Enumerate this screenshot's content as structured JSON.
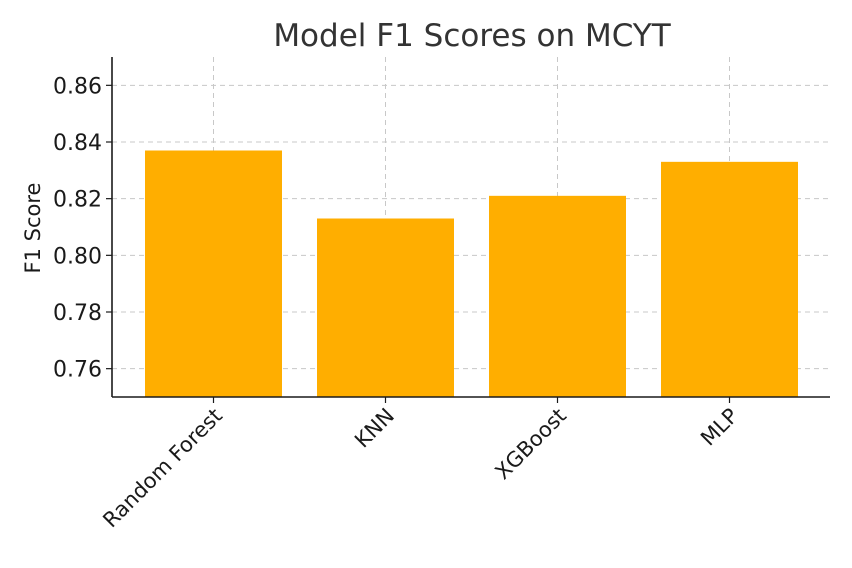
{
  "chart_data": {
    "type": "bar",
    "title": "Model F1 Scores on MCYT",
    "xlabel": "",
    "ylabel": "F1 Score",
    "categories": [
      "Random Forest",
      "KNN",
      "XGBoost",
      "MLP"
    ],
    "values": [
      0.837,
      0.813,
      0.821,
      0.833
    ],
    "ylim": [
      0.75,
      0.87
    ],
    "yticks": [
      0.76,
      0.78,
      0.8,
      0.82,
      0.84,
      0.86
    ],
    "ytick_labels": [
      "0.76",
      "0.78",
      "0.80",
      "0.82",
      "0.84",
      "0.86"
    ],
    "grid": true,
    "bar_color": "#FFAE00"
  }
}
